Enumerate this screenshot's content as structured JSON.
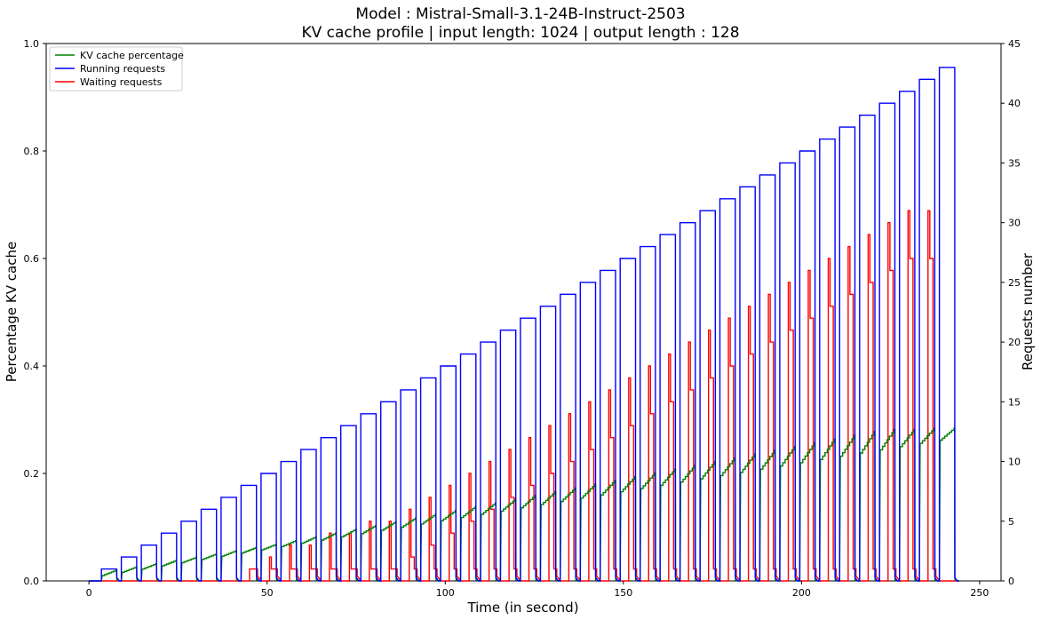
{
  "chart_data": {
    "type": "line",
    "title": "Model : Mistral-Small-3.1-24B-Instruct-2503",
    "subtitle": "KV cache profile | input length: 1024 | output length : 128",
    "xlabel": "Time (in second)",
    "ylabel": "Percentage KV cache",
    "ylabel_right": "Requests number",
    "xlim": [
      -12,
      256
    ],
    "ylim": [
      0,
      1.0
    ],
    "ylim_right": [
      0,
      45
    ],
    "x_ticks": [
      0,
      50,
      100,
      150,
      200,
      250
    ],
    "y_ticks": [
      0.0,
      0.2,
      0.4,
      0.6,
      0.8,
      1.0
    ],
    "y_ticks_right": [
      0,
      5,
      10,
      15,
      20,
      25,
      30,
      35,
      40,
      45
    ],
    "grid": false,
    "legend_position": "top-left",
    "legend": [
      "KV cache percentage",
      "Running requests",
      "Waiting requests"
    ],
    "colors": {
      "kv": "#008000",
      "running": "#0000ff",
      "waiting": "#ff0000"
    },
    "batches": {
      "count": 43,
      "start_times": [
        3.5,
        9.1,
        14.7,
        20.3,
        25.9,
        31.5,
        37.1,
        42.7,
        48.3,
        53.9,
        59.5,
        65.1,
        70.7,
        76.3,
        81.9,
        87.5,
        93.1,
        98.7,
        104.3,
        109.9,
        115.5,
        121.1,
        126.7,
        132.3,
        137.9,
        143.5,
        149.1,
        154.7,
        160.3,
        165.9,
        171.5,
        177.1,
        182.7,
        188.3,
        193.9,
        199.5,
        205.1,
        210.7,
        216.3,
        221.9,
        227.5,
        233.1,
        238.7
      ],
      "running_peak": [
        1,
        2,
        3,
        4,
        5,
        6,
        7,
        8,
        9,
        10,
        11,
        12,
        13,
        14,
        15,
        16,
        17,
        18,
        19,
        20,
        21,
        22,
        23,
        24,
        25,
        26,
        27,
        28,
        29,
        30,
        31,
        32,
        33,
        34,
        35,
        36,
        37,
        38,
        39,
        40,
        41,
        42,
        43
      ],
      "waiting_peak": [
        0,
        0,
        0,
        0,
        0,
        0,
        0,
        0,
        1,
        2,
        3,
        3,
        4,
        4,
        5,
        5,
        6,
        7,
        8,
        9,
        10,
        11,
        12,
        13,
        14,
        15,
        16,
        17,
        18,
        19,
        20,
        21,
        22,
        23,
        24,
        25,
        26,
        27,
        28,
        29,
        30,
        31,
        31
      ],
      "kv_peak": [
        0.01,
        0.016,
        0.022,
        0.028,
        0.034,
        0.04,
        0.046,
        0.052,
        0.058,
        0.064,
        0.07,
        0.076,
        0.082,
        0.088,
        0.094,
        0.1,
        0.106,
        0.112,
        0.118,
        0.124,
        0.13,
        0.136,
        0.142,
        0.148,
        0.154,
        0.16,
        0.166,
        0.172,
        0.178,
        0.184,
        0.19,
        0.196,
        0.202,
        0.208,
        0.214,
        0.22,
        0.226,
        0.232,
        0.238,
        0.244,
        0.25,
        0.256,
        0.262
      ],
      "kv_final": [
        0.02,
        0.026,
        0.032,
        0.038,
        0.044,
        0.05,
        0.056,
        0.062,
        0.068,
        0.075,
        0.082,
        0.089,
        0.096,
        0.103,
        0.11,
        0.117,
        0.124,
        0.131,
        0.138,
        0.145,
        0.152,
        0.159,
        0.166,
        0.173,
        0.18,
        0.187,
        0.194,
        0.201,
        0.208,
        0.215,
        0.222,
        0.229,
        0.236,
        0.243,
        0.25,
        0.257,
        0.264,
        0.271,
        0.278,
        0.282,
        0.282,
        0.284,
        0.284
      ]
    }
  }
}
